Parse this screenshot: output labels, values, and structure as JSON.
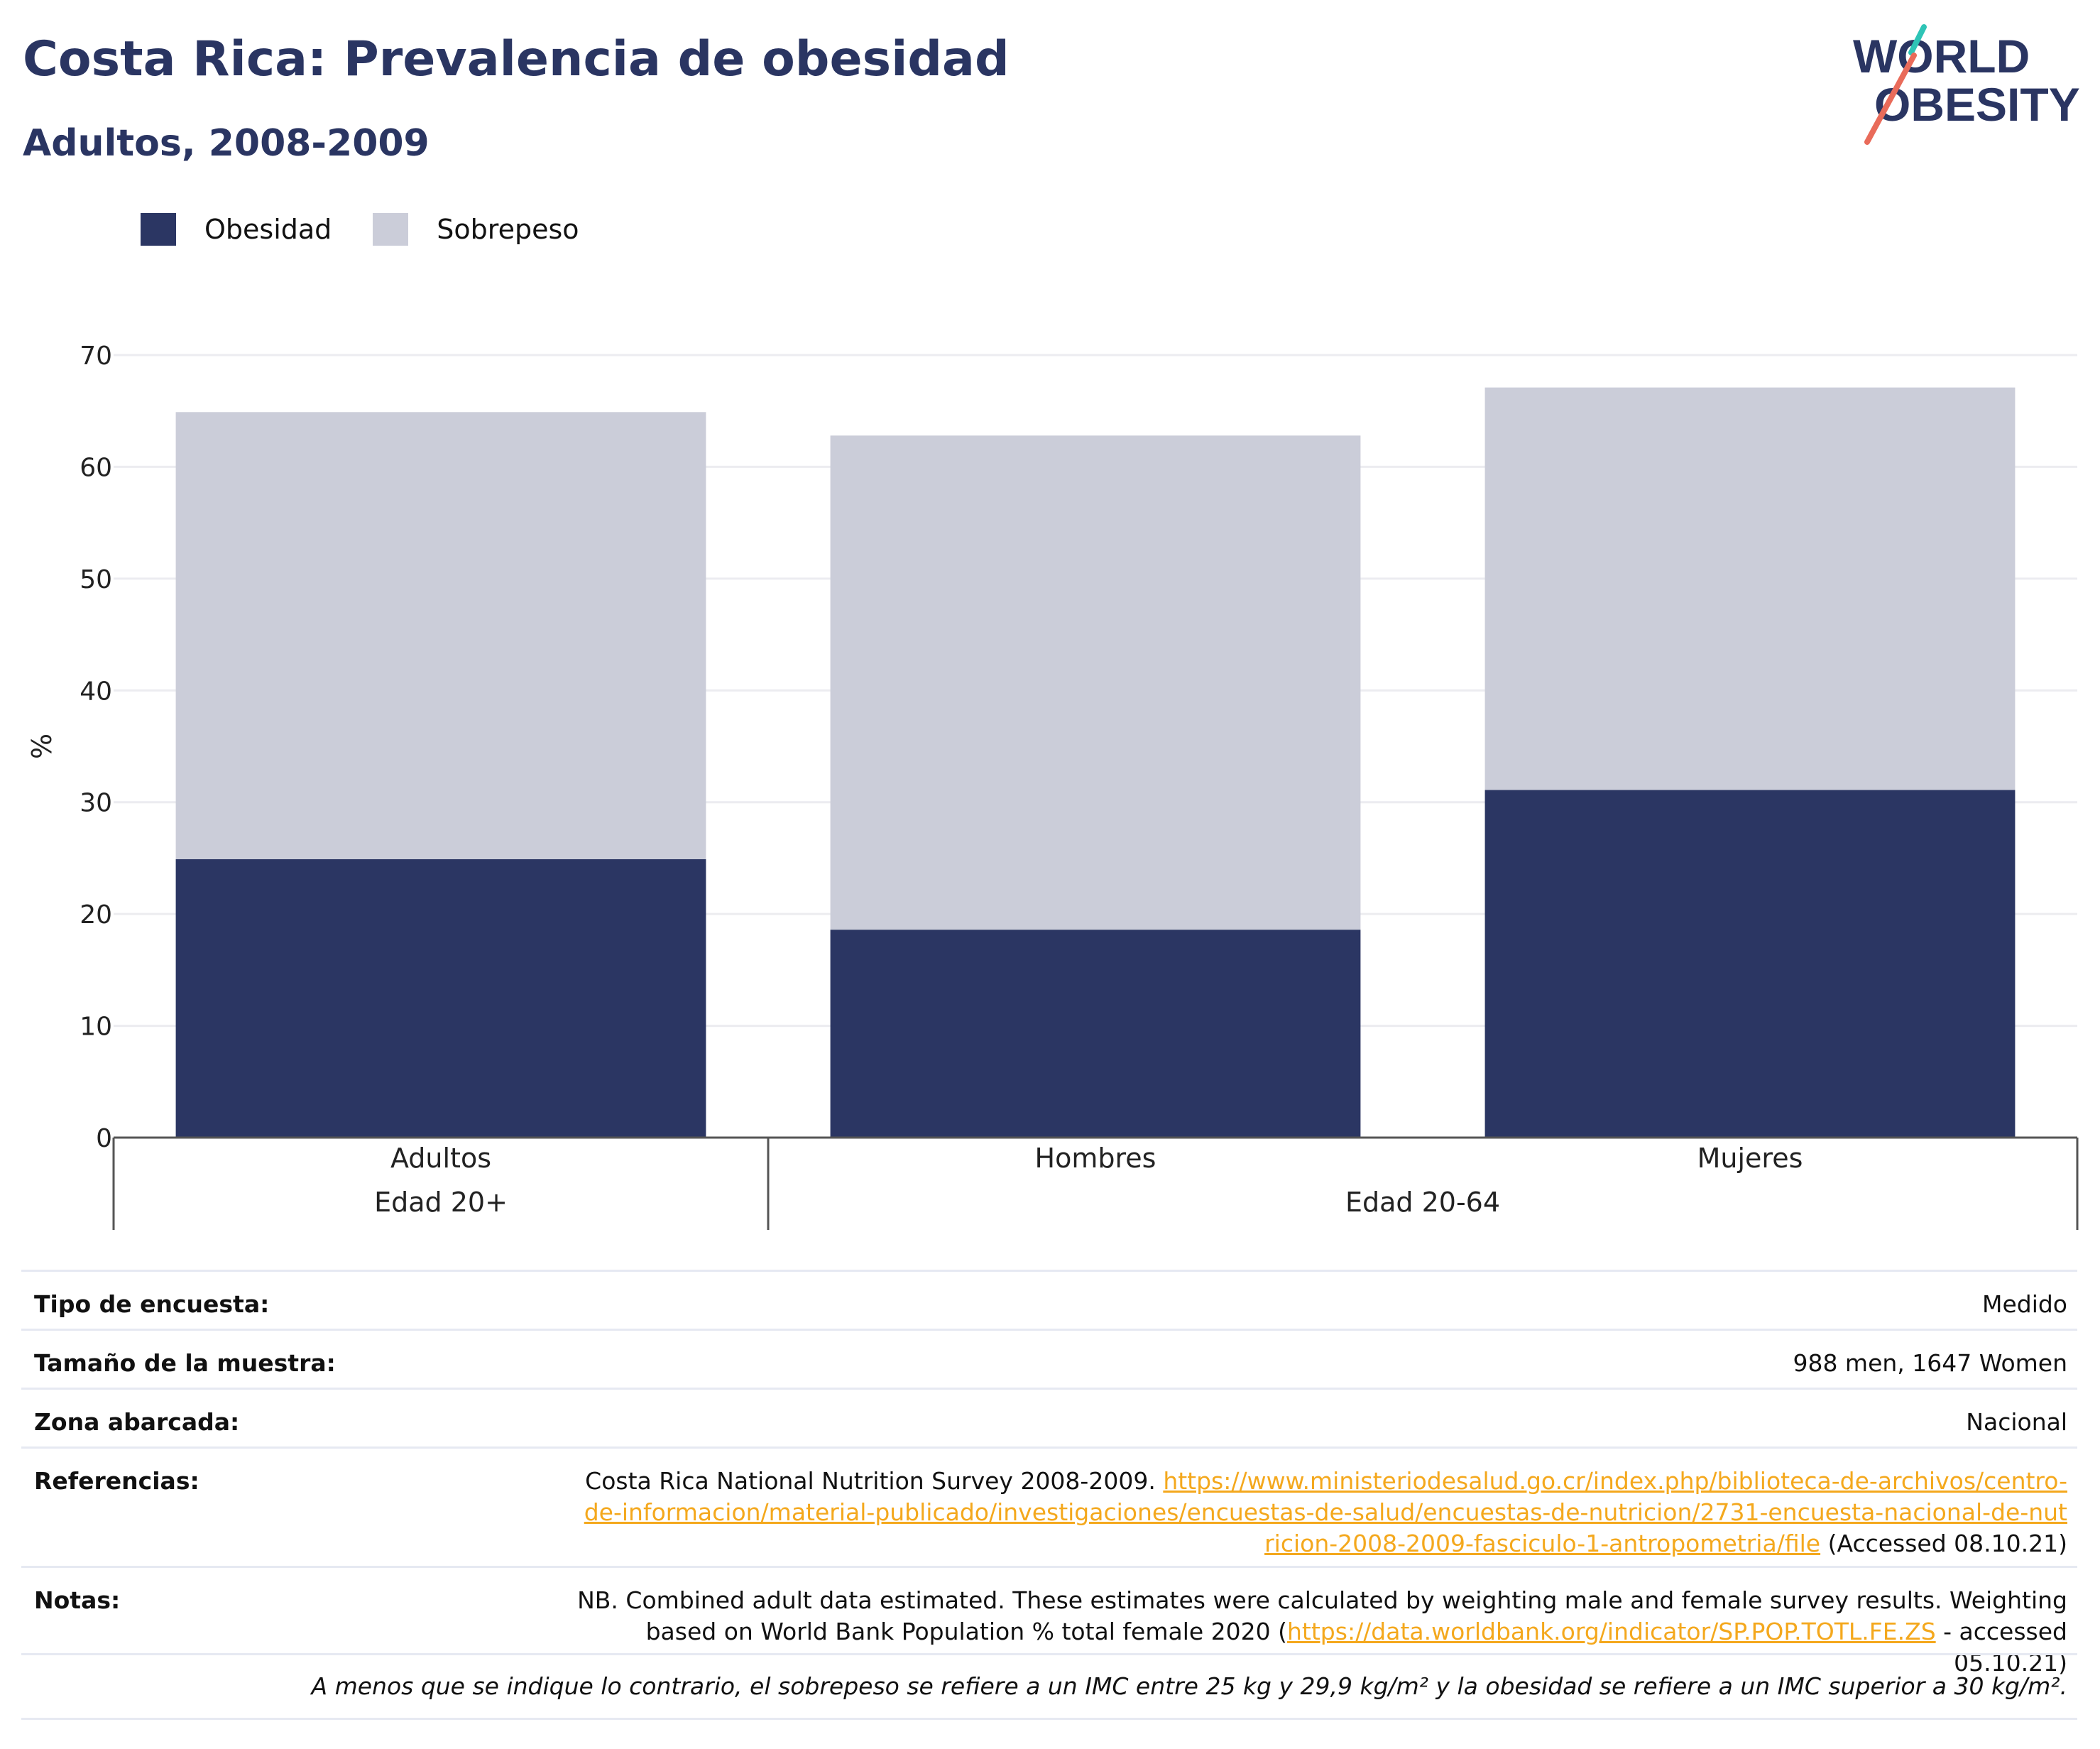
{
  "header": {
    "title": "Costa Rica: Prevalencia de obesidad",
    "subtitle": "Adultos, 2008-2009",
    "logo_text_line1": "WORLD",
    "logo_text_line2": "OBESITY"
  },
  "colors": {
    "obesity": "#2b3663",
    "overweight": "#cbcdd9",
    "title": "#2a3562",
    "link": "#f4a81d",
    "logo_teal": "#2ec4b6",
    "logo_coral": "#e96b5a"
  },
  "chart_data": {
    "type": "bar",
    "stacked": true,
    "categories": [
      "Adultos",
      "Hombres",
      "Mujeres"
    ],
    "groups": [
      {
        "label": "Edad 20+",
        "categories": [
          "Adultos"
        ]
      },
      {
        "label": "Edad 20-64",
        "categories": [
          "Hombres",
          "Mujeres"
        ]
      }
    ],
    "series": [
      {
        "name": "Obesidad",
        "values": [
          24.9,
          18.6,
          31.1
        ]
      },
      {
        "name": "Sobrepeso",
        "values": [
          40.0,
          44.2,
          36.0
        ]
      }
    ],
    "ylabel": "%",
    "ylim": [
      0,
      70
    ],
    "yticks": [
      0,
      10,
      20,
      30,
      40,
      50,
      60,
      70
    ],
    "grid": true,
    "legend_position": "top-left"
  },
  "info": {
    "survey_type_label": "Tipo de encuesta:",
    "survey_type_value": "Medido",
    "sample_size_label": "Tamaño de la muestra:",
    "sample_size_value": "988 men, 1647 Women",
    "area_label": "Zona abarcada:",
    "area_value": "Nacional",
    "references_label": "Referencias:",
    "references_text": "Costa Rica National Nutrition Survey 2008-2009.",
    "references_link": "https://www.ministeriodesalud.go.cr/index.php/biblioteca-de-archivos/centro-de-informacion/material-publicado/investigaciones/encuestas-de-salud/encuestas-de-nutricion/2731-encuesta-nacional-de-nutricion-2008-2009-fasciculo-1-antropometria/file",
    "references_suffix": "(Accessed 08.10.21)",
    "notes_label": "Notas:",
    "notes_text": "NB. Combined adult data estimated. These estimates were calculated by weighting male and female survey results. Weighting based on World Bank Population % total female 2020 (",
    "notes_link": "https://data.worldbank.org/indicator/SP.POP.TOTL.FE.ZS",
    "notes_suffix": " - accessed 05.10.21)",
    "footnote": "A menos que se indique lo contrario, el sobrepeso se refiere a un IMC entre 25 kg y 29,9 kg/m² y la obesidad se refiere a un IMC superior a 30 kg/m²."
  }
}
